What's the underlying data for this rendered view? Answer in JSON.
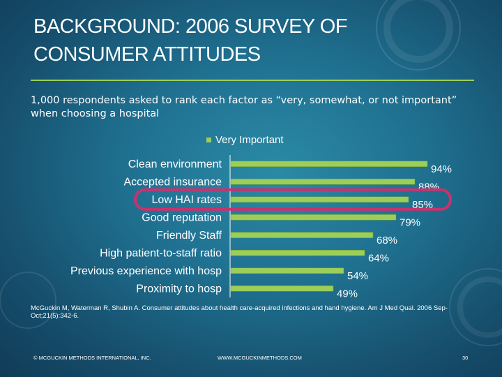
{
  "slide": {
    "title": "BACKGROUND: 2006 SURVEY OF CONSUMER ATTITUDES",
    "subtitle": "1,000 respondents asked to rank each factor as “very, somewhat, or not important” when choosing a hospital",
    "citation": "McGuckin M, Waterman R, Shubin A. Consumer attitudes about health care-acquired infections and hand hygiene. Am J Med Qual. 2006 Sep-Oct;21(5):342-6.",
    "footer_left": "© MCGUCKIN METHODS INTERNATIONAL, INC.",
    "footer_center": "WWW.MCGUCKINMETHODS.COM",
    "page_number": "30",
    "colors": {
      "bar": "#9ccf5a",
      "highlight": "#c8336e",
      "title_rule": "#9ccf5a"
    }
  },
  "chart_data": {
    "type": "bar",
    "orientation": "horizontal",
    "legend": [
      "Very Important"
    ],
    "legend_position": "top",
    "categories": [
      "Clean environment",
      "Accepted insurance",
      "Low HAI rates",
      "Good reputation",
      "Friendly Staff",
      "High patient-to-staff ratio",
      "Previous experience with hosp",
      "Proximity to hosp"
    ],
    "series": [
      {
        "name": "Very Important",
        "values": [
          94,
          88,
          85,
          79,
          68,
          64,
          54,
          49
        ],
        "labels": [
          "94%",
          "88%",
          "85%",
          "79%",
          "68%",
          "64%",
          "54%",
          "49%"
        ]
      }
    ],
    "highlighted_category": "Low HAI rates",
    "xlim": [
      0,
      100
    ],
    "grid": false
  }
}
